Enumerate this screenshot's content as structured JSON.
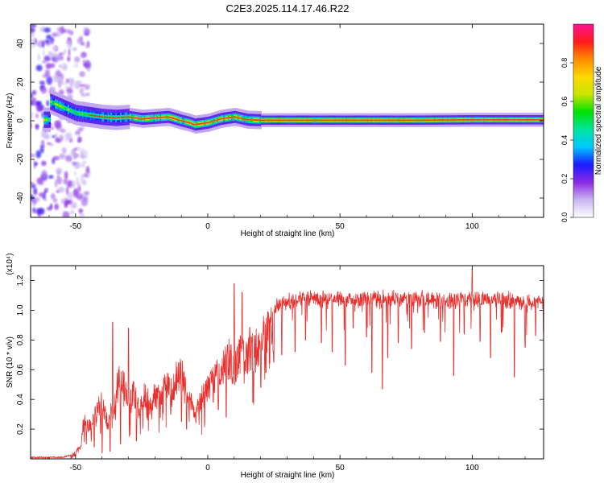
{
  "title": "C2E3.2025.114.17.46.R22",
  "colors": {
    "snr_line": "#e8312f",
    "spectrum_ridge": "#e8312f",
    "colorbar": [
      "#ffffff",
      "#c9b6f2",
      "#8a2be2",
      "#1a1aff",
      "#00c8ff",
      "#00e5a0",
      "#00e000",
      "#c8e600",
      "#ffd700",
      "#ff8c00",
      "#ff1a1a",
      "#ff1493"
    ]
  },
  "chart_data": [
    {
      "type": "heatmap",
      "xlabel": "Height of straight line (km)",
      "ylabel": "Frequency (Hz)",
      "xlim": [
        -67,
        127
      ],
      "ylim": [
        -50,
        50
      ],
      "xticks": [
        -50,
        0,
        50,
        100
      ],
      "yticks": [
        -40,
        -20,
        0,
        20,
        40
      ],
      "grid": false,
      "colorbar": {
        "label": "Normalized spectral amplitude",
        "range": [
          0,
          1
        ],
        "ticks": [
          "0.0",
          "0.2",
          "0.4",
          "0.6",
          "0.8"
        ]
      },
      "ridge": [
        [
          -60,
          10
        ],
        [
          -55,
          7
        ],
        [
          -50,
          4
        ],
        [
          -45,
          3
        ],
        [
          -40,
          2
        ],
        [
          -35,
          1.5
        ],
        [
          -30,
          2
        ],
        [
          -25,
          1
        ],
        [
          -20,
          1.5
        ],
        [
          -15,
          2
        ],
        [
          -10,
          0
        ],
        [
          -7,
          -1
        ],
        [
          -5,
          -2
        ],
        [
          0,
          -1
        ],
        [
          5,
          1
        ],
        [
          10,
          2
        ],
        [
          15,
          0.5
        ],
        [
          20,
          0.3
        ],
        [
          30,
          0.3
        ],
        [
          50,
          0.3
        ],
        [
          80,
          0.3
        ],
        [
          100,
          0.5
        ],
        [
          127,
          0.5
        ]
      ]
    },
    {
      "type": "line",
      "xlabel": "Height of straight line (km)",
      "ylabel": "SNR (10 * v/v)",
      "y_multiplier": "(x10⁴)",
      "xlim": [
        -67,
        127
      ],
      "ylim": [
        0,
        1.3
      ],
      "xticks": [
        -50,
        0,
        50,
        100
      ],
      "yticks": [
        0.2,
        0.4,
        0.6,
        0.8,
        1.0,
        1.2
      ],
      "grid": false,
      "series": [
        {
          "envelope": [
            [
              -67,
              0.01
            ],
            [
              -55,
              0.01
            ],
            [
              -51,
              0.03
            ],
            [
              -48,
              0.1
            ],
            [
              -47,
              0.3
            ],
            [
              -45,
              0.25
            ],
            [
              -42,
              0.4
            ],
            [
              -40,
              0.45
            ],
            [
              -38,
              0.3
            ],
            [
              -35,
              0.5
            ],
            [
              -33,
              0.7
            ],
            [
              -31,
              0.55
            ],
            [
              -30,
              0.45
            ],
            [
              -28,
              0.55
            ],
            [
              -26,
              0.4
            ],
            [
              -24,
              0.55
            ],
            [
              -22,
              0.45
            ],
            [
              -20,
              0.5
            ],
            [
              -18,
              0.55
            ],
            [
              -16,
              0.6
            ],
            [
              -14,
              0.55
            ],
            [
              -12,
              0.65
            ],
            [
              -10,
              0.7
            ],
            [
              -8,
              0.5
            ],
            [
              -6,
              0.45
            ],
            [
              -5,
              0.35
            ],
            [
              -3,
              0.45
            ],
            [
              0,
              0.6
            ],
            [
              3,
              0.65
            ],
            [
              5,
              0.7
            ],
            [
              8,
              0.8
            ],
            [
              10,
              0.75
            ],
            [
              12,
              0.85
            ],
            [
              14,
              0.8
            ],
            [
              16,
              0.9
            ],
            [
              18,
              0.85
            ],
            [
              20,
              0.95
            ],
            [
              22,
              1.0
            ],
            [
              25,
              1.05
            ],
            [
              28,
              1.08
            ],
            [
              30,
              1.1
            ],
            [
              35,
              1.12
            ],
            [
              40,
              1.12
            ],
            [
              50,
              1.12
            ],
            [
              60,
              1.12
            ],
            [
              70,
              1.12
            ],
            [
              80,
              1.12
            ],
            [
              90,
              1.11
            ],
            [
              100,
              1.12
            ],
            [
              110,
              1.12
            ],
            [
              120,
              1.1
            ],
            [
              127,
              1.1
            ]
          ],
          "dips": [
            [
              -50,
              0.02
            ],
            [
              -46,
              0.1
            ],
            [
              -43,
              0.08
            ],
            [
              -40,
              0.04
            ],
            [
              -37,
              0.05
            ],
            [
              -33,
              0.1
            ],
            [
              -27,
              0.12
            ],
            [
              -22,
              0.3
            ],
            [
              -14,
              0.3
            ],
            [
              -10,
              0.25
            ],
            [
              -8,
              0.2
            ],
            [
              -5,
              0.28
            ],
            [
              -2,
              0.38
            ],
            [
              2,
              0.38
            ],
            [
              4,
              0.33
            ],
            [
              7,
              0.28
            ],
            [
              10,
              0.3
            ],
            [
              13,
              0.14
            ],
            [
              17,
              0.38
            ],
            [
              20,
              0.48
            ],
            [
              22,
              0.58
            ],
            [
              25,
              0.65
            ],
            [
              28,
              0.7
            ],
            [
              33,
              0.72
            ],
            [
              37,
              0.8
            ],
            [
              43,
              0.78
            ],
            [
              47,
              0.72
            ],
            [
              52,
              0.63
            ],
            [
              55,
              0.88
            ],
            [
              60,
              0.82
            ],
            [
              62,
              0.58
            ],
            [
              66,
              0.47
            ],
            [
              68,
              0.68
            ],
            [
              72,
              0.78
            ],
            [
              77,
              0.74
            ],
            [
              82,
              0.85
            ],
            [
              88,
              0.79
            ],
            [
              93,
              0.56
            ],
            [
              97,
              0.84
            ],
            [
              103,
              0.79
            ],
            [
              107,
              0.68
            ],
            [
              111,
              0.85
            ],
            [
              116,
              0.55
            ],
            [
              120,
              0.75
            ],
            [
              124,
              0.83
            ]
          ],
          "peaks": [
            [
              -36,
              0.92
            ],
            [
              -30,
              0.88
            ],
            [
              10,
              1.18
            ],
            [
              13,
              1.12
            ],
            [
              100,
              1.28
            ]
          ]
        }
      ]
    }
  ]
}
